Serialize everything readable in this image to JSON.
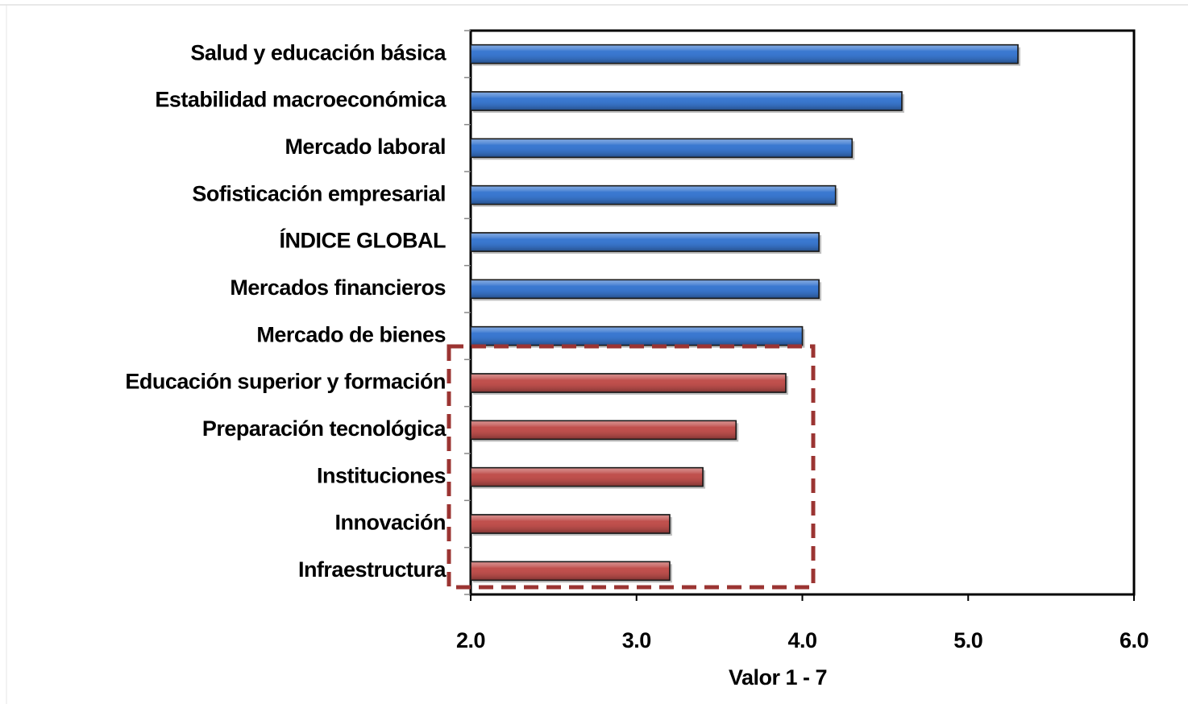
{
  "chart_data": {
    "type": "bar",
    "orientation": "horizontal",
    "categories": [
      "Salud y educación básica",
      "Estabilidad macroeconómica",
      "Mercado laboral",
      "Sofisticación empresarial",
      "ÍNDICE GLOBAL",
      "Mercados financieros",
      "Mercado de bienes",
      "Educación superior y formación",
      "Preparación tecnológica",
      "Instituciones",
      "Innovación",
      "Infraestructura"
    ],
    "values": [
      5.3,
      4.6,
      4.3,
      4.2,
      4.1,
      4.1,
      4.0,
      3.9,
      3.6,
      3.4,
      3.2,
      3.2
    ],
    "colors": [
      "#3a78d0",
      "#3a78d0",
      "#3a78d0",
      "#3a78d0",
      "#3a78d0",
      "#3a78d0",
      "#3a78d0",
      "#c0504d",
      "#c0504d",
      "#c0504d",
      "#c0504d",
      "#c0504d"
    ],
    "xlabel": "Valor 1 - 7",
    "xlim": [
      2,
      6
    ],
    "xticks": [
      {
        "value": 2,
        "label": "2.0"
      },
      {
        "value": 3,
        "label": "3.0"
      },
      {
        "value": 4,
        "label": "4.0"
      },
      {
        "value": 5,
        "label": "5.0"
      },
      {
        "value": 6,
        "label": "6.0"
      }
    ],
    "grid": false
  }
}
